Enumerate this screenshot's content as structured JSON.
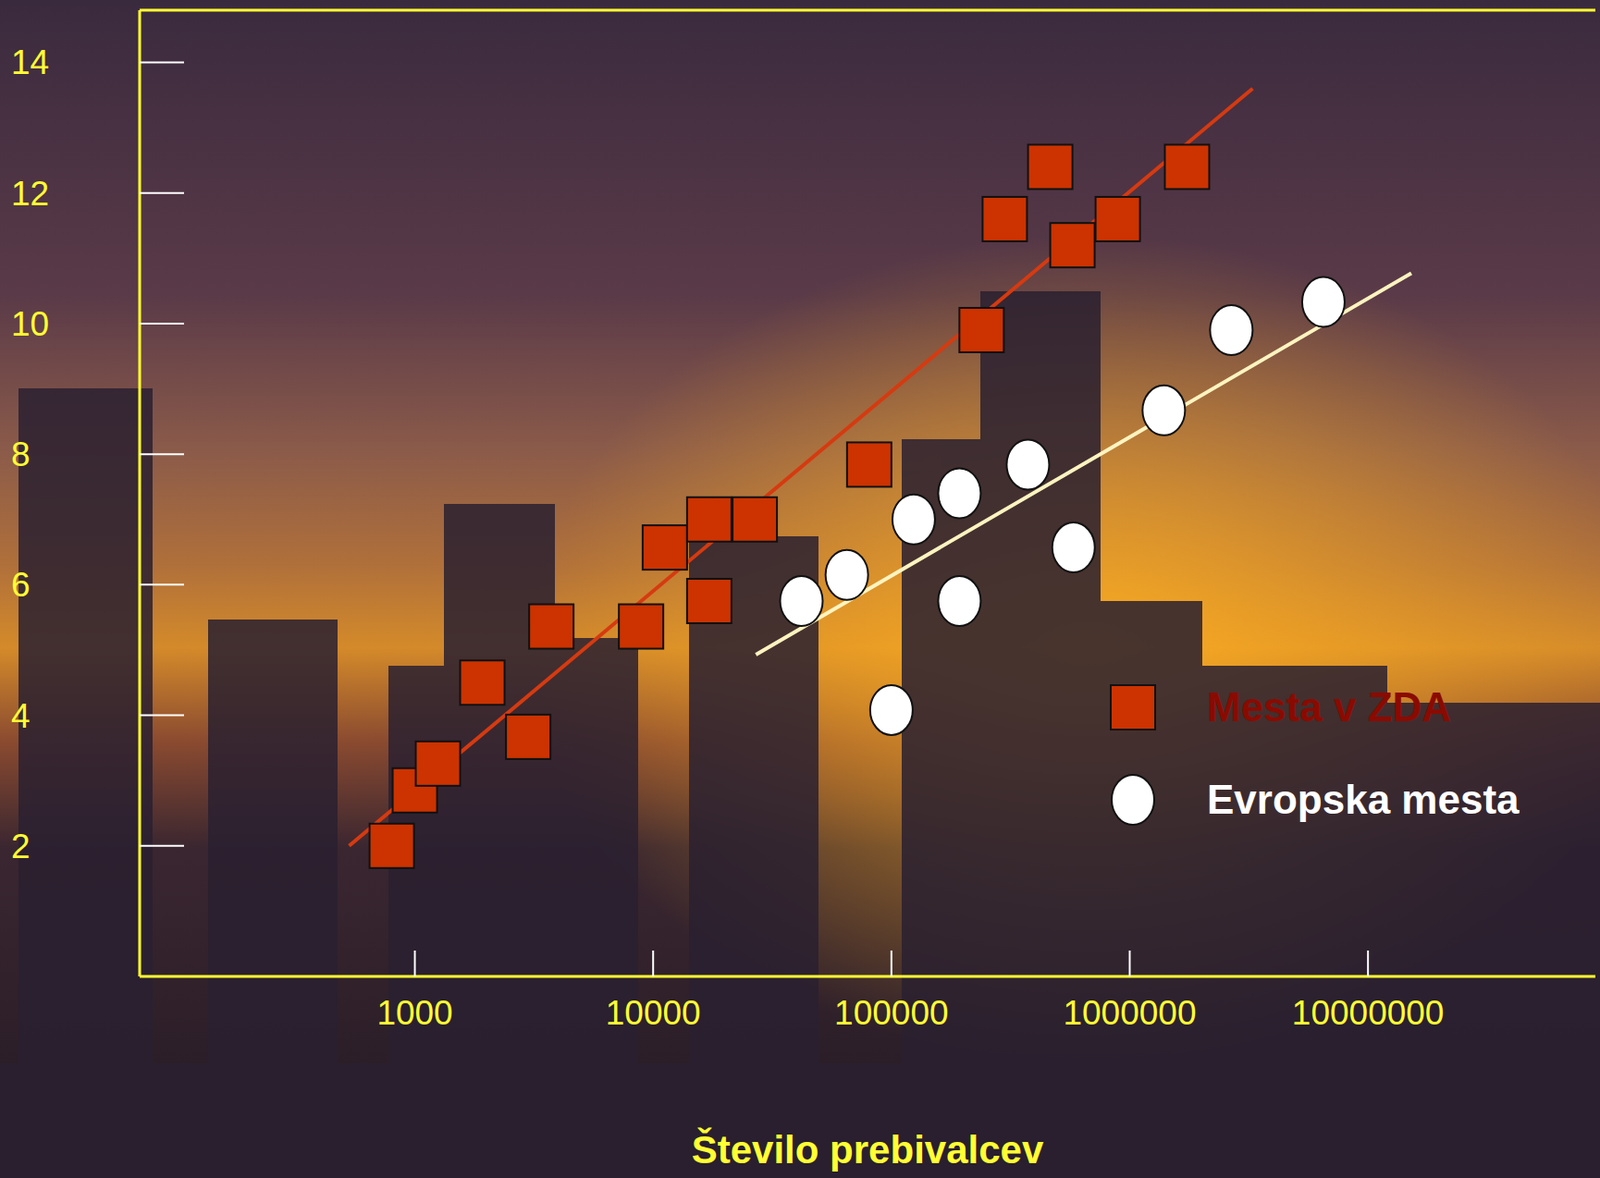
{
  "chart_data": {
    "type": "scatter",
    "x_label": "Število prebivalcev",
    "log": "x",
    "grid": false,
    "legend": "lower right",
    "xlim": [
      70,
      90000000
    ],
    "ylim": [
      0,
      14.8
    ],
    "xticks": [
      1000,
      10000,
      100000,
      1000000,
      10000000
    ],
    "yticks": [
      2,
      4,
      6,
      8,
      10,
      12,
      14
    ],
    "series": [
      {
        "name": "Mesta v ZDA",
        "color": "#cc3300",
        "marker": "square",
        "line_style": "solid",
        "x": [
          800,
          1000,
          1250,
          1920,
          2990,
          3740,
          8900,
          11200,
          17200,
          17200,
          26700,
          80700,
          239000,
          299000,
          464000,
          575000,
          891000,
          1740000
        ],
        "values": [
          2.0,
          2.85,
          3.26,
          4.5,
          3.67,
          5.36,
          5.36,
          6.57,
          5.75,
          7.0,
          7.0,
          7.84,
          9.9,
          11.6,
          12.4,
          11.2,
          11.6,
          12.4
        ],
        "fit": {
          "x": [
            530,
            3280000
          ],
          "y": [
            2.0,
            13.6
          ]
        }
      },
      {
        "name": "Evropska mesta",
        "color": "#ffffff",
        "marker": "circle",
        "line_style": "solid",
        "x": [
          41900,
          65000,
          100000,
          124000,
          193000,
          193000,
          374000,
          581000,
          1390000,
          2670000,
          6500000
        ],
        "values": [
          5.75,
          6.15,
          4.08,
          7.0,
          7.4,
          5.75,
          7.84,
          6.57,
          8.67,
          9.9,
          10.33
        ],
        "fit": {
          "x": [
            27000,
            15200000
          ],
          "y": [
            4.93,
            10.77
          ]
        }
      }
    ]
  }
}
